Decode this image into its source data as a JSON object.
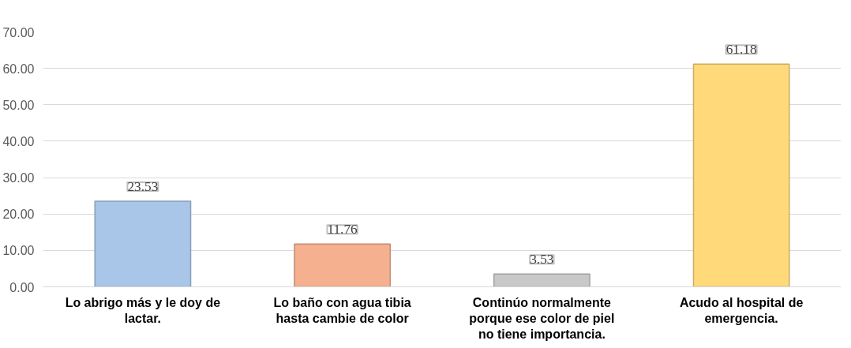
{
  "chart_data": {
    "type": "bar",
    "categories": [
      "Lo abrigo más y le doy de lactar.",
      "Lo baño con agua tibia hasta cambie de color",
      "Continúo normalmente porque ese color de piel no tiene importancia.",
      "Acudo al hospital de emergencia."
    ],
    "values": [
      23.53,
      11.76,
      3.53,
      61.18
    ],
    "colors": [
      "#a9c6e8",
      "#f4b08f",
      "#c8c8c8",
      "#ffd97a"
    ],
    "ylim": [
      0,
      70
    ],
    "yticks": [
      {
        "value": 0,
        "label": "0.00"
      },
      {
        "value": 10,
        "label": "10.00"
      },
      {
        "value": 20,
        "label": "20.00"
      },
      {
        "value": 30,
        "label": "30.00"
      },
      {
        "value": 40,
        "label": "40.00"
      },
      {
        "value": 50,
        "label": "50.00"
      },
      {
        "value": 60,
        "label": "60.00"
      },
      {
        "value": 70,
        "label": "70.00"
      }
    ],
    "grid": "y",
    "data_labels": true
  }
}
